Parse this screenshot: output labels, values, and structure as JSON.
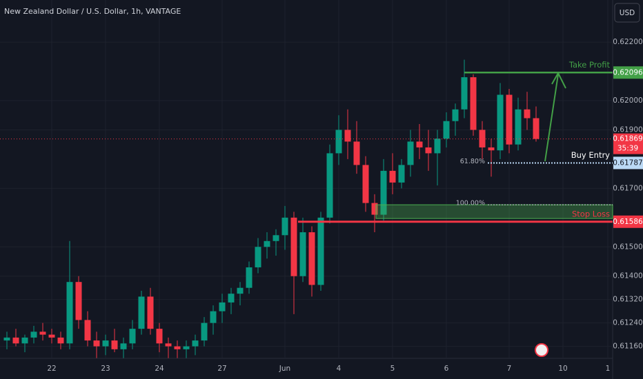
{
  "header": {
    "title": "New Zealand Dollar / U.S. Dollar, 1h, VANTAGE",
    "currency": "USD"
  },
  "chart_data": {
    "type": "candlestick",
    "categories": [
      null,
      null,
      null,
      null,
      null,
      "22",
      null,
      null,
      null,
      null,
      null,
      "23",
      null,
      null,
      null,
      null,
      null,
      "24",
      null,
      null,
      null,
      null,
      null,
      null,
      "27",
      null,
      null,
      null,
      null,
      null,
      null,
      "Jun",
      null,
      null,
      null,
      null,
      null,
      "4",
      null,
      null,
      null,
      null,
      null,
      "5",
      null,
      null,
      null,
      null,
      null,
      "6",
      null,
      null,
      null,
      null,
      null,
      null,
      "7",
      null,
      null,
      null,
      null,
      null,
      "10",
      null,
      null,
      null,
      null,
      "1"
    ],
    "open": [
      0.6118,
      0.6119,
      0.6117,
      0.6119,
      0.6121,
      0.612,
      0.6119,
      0.6117,
      0.6138,
      0.6125,
      0.6118,
      0.6116,
      0.6118,
      0.6115,
      0.6117,
      0.6122,
      0.6133,
      0.6122,
      0.6117,
      0.6116,
      0.6115,
      0.6116,
      0.6118,
      0.6124,
      0.6128,
      0.6131,
      0.6134,
      0.6136,
      0.6143,
      0.615,
      0.6152,
      0.6154,
      0.616,
      0.614,
      0.6155,
      0.6137,
      0.616,
      0.6182,
      0.619,
      0.6186,
      0.6178,
      0.6165,
      0.6161,
      0.6176,
      0.6172,
      0.6178,
      0.6186,
      0.6184,
      0.6182,
      0.6187,
      0.6193,
      0.6197,
      0.6208,
      0.619,
      0.6184,
      0.6183,
      0.6202,
      0.6185,
      0.6197,
      0.6194,
      null,
      null,
      null,
      null,
      null,
      null,
      null,
      null
    ],
    "high": [
      0.6121,
      0.6122,
      0.612,
      0.6123,
      0.6124,
      0.6122,
      0.6121,
      0.6152,
      0.614,
      0.6128,
      0.6121,
      0.612,
      0.6122,
      0.6119,
      0.6125,
      0.6135,
      0.6136,
      0.6124,
      0.6119,
      0.6118,
      0.6118,
      0.612,
      0.6126,
      0.613,
      0.6134,
      0.6136,
      0.6138,
      0.6145,
      0.6153,
      0.6155,
      0.6156,
      0.6164,
      0.6162,
      0.616,
      0.6157,
      0.6162,
      0.6185,
      0.6195,
      0.6197,
      0.6193,
      0.6181,
      0.6168,
      0.618,
      0.6182,
      0.618,
      0.619,
      0.6192,
      0.619,
      0.619,
      0.6196,
      0.6199,
      0.6214,
      0.6209,
      0.6193,
      0.6187,
      0.6206,
      0.6204,
      0.6201,
      0.6203,
      0.6198,
      null,
      null,
      null,
      null,
      null,
      null,
      null,
      null
    ],
    "low": [
      0.6115,
      0.6116,
      0.6114,
      0.6117,
      0.6118,
      0.6117,
      0.6115,
      0.6115,
      0.6122,
      0.6116,
      0.6112,
      0.6113,
      0.6114,
      0.6112,
      0.6115,
      0.612,
      0.612,
      0.6114,
      0.6112,
      0.6112,
      0.6112,
      0.6113,
      0.6116,
      0.612,
      0.6124,
      0.6127,
      0.613,
      0.6134,
      0.6141,
      0.6146,
      0.6147,
      0.6149,
      0.6127,
      0.6138,
      0.6133,
      0.6135,
      0.6158,
      0.6178,
      0.618,
      0.6175,
      0.6162,
      0.6155,
      0.6159,
      0.6168,
      0.617,
      0.6174,
      0.618,
      0.6176,
      0.6171,
      0.6184,
      0.6188,
      0.6194,
      0.6188,
      0.618,
      0.6174,
      0.618,
      0.6182,
      0.6183,
      0.619,
      0.6186,
      null,
      null,
      null,
      null,
      null,
      null,
      null,
      null
    ],
    "close": [
      0.6119,
      0.6117,
      0.6119,
      0.6121,
      0.612,
      0.6119,
      0.6117,
      0.6138,
      0.6125,
      0.6118,
      0.6116,
      0.6118,
      0.6115,
      0.6117,
      0.6122,
      0.6133,
      0.6122,
      0.6117,
      0.6116,
      0.6115,
      0.6116,
      0.6118,
      0.6124,
      0.6128,
      0.6131,
      0.6134,
      0.6136,
      0.6143,
      0.615,
      0.6152,
      0.6154,
      0.616,
      0.614,
      0.6155,
      0.6137,
      0.616,
      0.6182,
      0.619,
      0.6186,
      0.6178,
      0.6165,
      0.6161,
      0.6176,
      0.6172,
      0.6178,
      0.6186,
      0.6184,
      0.6182,
      0.6187,
      0.6193,
      0.6197,
      0.6208,
      0.619,
      0.6184,
      0.6183,
      0.6202,
      0.6185,
      0.6197,
      0.6194,
      0.61869,
      null,
      null,
      null,
      null,
      null,
      null,
      null,
      null
    ],
    "up_color": "#089981",
    "down_color": "#f23645",
    "ylim": [
      0.61119,
      0.62344
    ],
    "yticks": [
      {
        "value": 0.622,
        "label": "0.62200"
      },
      {
        "value": 0.62,
        "label": "0.62000"
      },
      {
        "value": 0.619,
        "label": "0.61900"
      },
      {
        "value": 0.617,
        "label": "0.61700"
      },
      {
        "value": 0.615,
        "label": "0.61500"
      },
      {
        "value": 0.614,
        "label": "0.61400"
      },
      {
        "value": 0.6132,
        "label": "0.61320"
      },
      {
        "value": 0.6124,
        "label": "0.61240"
      },
      {
        "value": 0.6116,
        "label": "0.61160"
      }
    ],
    "grid": true,
    "levels": [
      {
        "name": "Take Profit",
        "value": 0.62096,
        "color": "#43a047"
      },
      {
        "name": "Buy Entry",
        "value": 0.61787,
        "color": "#bbd9f5"
      },
      {
        "name": "Stop Loss",
        "value": 0.61586,
        "color": "#f23645"
      }
    ],
    "fib": [
      {
        "label": "61.80%",
        "value": 0.61787
      },
      {
        "label": "100.00%",
        "value": 0.61644
      }
    ],
    "zone": [
      0.61597,
      0.61644
    ],
    "last_price": 0.61869,
    "countdown": "35:39"
  }
}
